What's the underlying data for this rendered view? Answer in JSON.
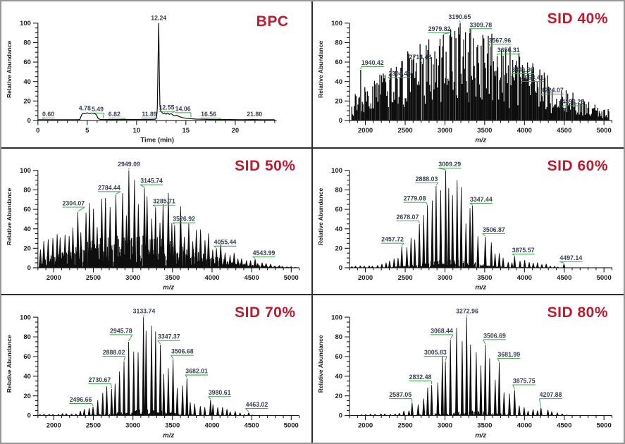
{
  "figure": {
    "background": "#ffffff",
    "outer_border_color": "#979797",
    "divider_color": "#2e2e2e",
    "accent_red": "#c11a2e",
    "trace_color": "#0e0e0e",
    "axis_color": "#1c1c1c",
    "peak_label_color": "#3b4154",
    "leader_green": "#3aa84b"
  },
  "chart_data": [
    {
      "id": "bpc",
      "type": "line",
      "subtype": "chromatogram",
      "title": "BPC",
      "xlabel": "Time (min)",
      "xlabel_italic": false,
      "ylabel": "Relative Abundance",
      "xlim": [
        0,
        24.2
      ],
      "ylim": [
        0,
        105
      ],
      "xmajor": 5,
      "xminor": 1,
      "ymajor": 20,
      "yminor": 5,
      "xtick_labels": [
        "0",
        "5",
        "10",
        "15",
        "20"
      ],
      "ytick_labels": [
        "0",
        "20",
        "40",
        "60",
        "80",
        "100"
      ],
      "trace": [
        [
          0,
          0.8
        ],
        [
          1,
          0.8
        ],
        [
          2,
          0.8
        ],
        [
          3,
          0.8
        ],
        [
          4,
          0.8
        ],
        [
          4.25,
          1.0
        ],
        [
          4.45,
          6.2
        ],
        [
          4.6,
          7.4
        ],
        [
          4.8,
          7.0
        ],
        [
          5.0,
          7.8
        ],
        [
          5.2,
          7.1
        ],
        [
          5.4,
          7.6
        ],
        [
          5.6,
          7.2
        ],
        [
          5.8,
          6.8
        ],
        [
          5.95,
          5.5
        ],
        [
          6.1,
          2.0
        ],
        [
          6.3,
          1.1
        ],
        [
          7,
          0.9
        ],
        [
          8,
          0.9
        ],
        [
          9,
          1.0
        ],
        [
          10,
          1.0
        ],
        [
          11,
          1.0
        ],
        [
          11.6,
          1.1
        ],
        [
          11.9,
          1.3
        ],
        [
          12.02,
          2.5
        ],
        [
          12.1,
          12
        ],
        [
          12.18,
          62
        ],
        [
          12.24,
          100
        ],
        [
          12.3,
          52
        ],
        [
          12.36,
          16
        ],
        [
          12.45,
          9
        ],
        [
          12.55,
          8.6
        ],
        [
          12.7,
          7.0
        ],
        [
          12.85,
          7.6
        ],
        [
          13.0,
          6.4
        ],
        [
          13.15,
          7.8
        ],
        [
          13.3,
          6.3
        ],
        [
          13.5,
          7.0
        ],
        [
          13.7,
          5.4
        ],
        [
          13.9,
          4.9
        ],
        [
          14.06,
          5.4
        ],
        [
          14.3,
          4.0
        ],
        [
          14.6,
          3.0
        ],
        [
          15.0,
          2.2
        ],
        [
          15.5,
          1.8
        ],
        [
          16.0,
          1.4
        ],
        [
          16.56,
          1.2
        ],
        [
          17.5,
          1.0
        ],
        [
          18.5,
          0.9
        ],
        [
          19.5,
          0.9
        ],
        [
          20.5,
          0.8
        ],
        [
          21.8,
          0.9
        ],
        [
          22.8,
          0.8
        ],
        [
          24.0,
          0.8
        ]
      ],
      "annotated_peaks": [
        {
          "label": "0.60",
          "lx": 1.05,
          "ly": 4.3,
          "tx": 0.6,
          "ty": 1.2
        },
        {
          "label": "4.78",
          "lx": 4.75,
          "ly": 10.6
        },
        {
          "label": "5.49",
          "lx": 6.05,
          "ly": 9.4,
          "tx": 6.6,
          "ty": 1.6
        },
        {
          "label": "6.82",
          "lx": 7.75,
          "ly": 4.1,
          "tx": 8.9,
          "ty": 1.1
        },
        {
          "label": "11.89",
          "lx": 11.3,
          "ly": 4.4,
          "tx": 12.0,
          "ty": 1.6
        },
        {
          "label": "12.24",
          "lx": 12.24,
          "ly": 103
        },
        {
          "label": "12.55",
          "lx": 13.05,
          "ly": 11.0,
          "tx": 13.6,
          "ty": 7.2
        },
        {
          "label": "14.06",
          "lx": 14.7,
          "ly": 9.8,
          "tx": 15.5,
          "ty": 2.6
        },
        {
          "label": "16.56",
          "lx": 17.3,
          "ly": 4.2,
          "tx": 18.6,
          "ty": 1.1
        },
        {
          "label": "21.80",
          "lx": 21.95,
          "ly": 4.2
        }
      ]
    },
    {
      "id": "sid40",
      "type": "line",
      "subtype": "mass-spectrum",
      "title": "SID 40%",
      "xlabel": "m/z",
      "xlabel_italic": true,
      "ylabel": "Relative Abundance",
      "xlim": [
        1800,
        5100
      ],
      "ylim": [
        0,
        105
      ],
      "xmajor": 500,
      "xminor": 100,
      "ymajor": 20,
      "yminor": 5,
      "xtick_labels": [
        "2000",
        "2500",
        "3000",
        "3500",
        "4000",
        "4500",
        "5000"
      ],
      "ytick_labels": [
        "0",
        "20",
        "40",
        "60",
        "80",
        "100"
      ],
      "envelope": [
        [
          98,
          3230,
          880
        ]
      ],
      "render": {
        "style": "dense",
        "seed": 13,
        "comb_spacing": 11,
        "comb_min": 0.16,
        "comb_var": 0.84,
        "comb_pow": 0.85,
        "grass_spacing": 0,
        "grass_amp": 0
      },
      "annotated_peaks": [
        {
          "label": "1940.42",
          "x": 1940.42,
          "y": 52,
          "lx": 2090,
          "ly": 57
        },
        {
          "label": "2304.46",
          "x": 2304.46,
          "y": 42,
          "lx": 2430,
          "ly": 46
        },
        {
          "label": "2714.43",
          "x": 2714.43,
          "y": 58,
          "lx": 2690,
          "ly": 63
        },
        {
          "label": "2979.82",
          "x": 2979.82,
          "y": 88,
          "lx": 2930,
          "ly": 92
        },
        {
          "label": "3190.65",
          "x": 3190.65,
          "y": 100,
          "lx": 3185,
          "ly": 104
        },
        {
          "label": "3309.78",
          "x": 3309.78,
          "y": 90,
          "lx": 3450,
          "ly": 96
        },
        {
          "label": "3567.96",
          "x": 3567.96,
          "y": 76,
          "lx": 3690,
          "ly": 80
        },
        {
          "label": "3656.31",
          "x": 3656.31,
          "y": 66,
          "lx": 3800,
          "ly": 70
        },
        {
          "label": "3841.98",
          "x": 3841.98,
          "y": 46,
          "lx": 3980,
          "ly": 50
        },
        {
          "label": "3968.41",
          "x": 3968.41,
          "y": 38,
          "lx": 4100,
          "ly": 42
        },
        {
          "label": "4224.07",
          "x": 4224.07,
          "y": 25,
          "lx": 4350,
          "ly": 29
        },
        {
          "label": "4492.29",
          "x": 4492.29,
          "y": 13,
          "lx": 4610,
          "ly": 17
        }
      ]
    },
    {
      "id": "sid50",
      "type": "line",
      "subtype": "mass-spectrum",
      "title": "SID 50%",
      "xlabel": "m/z",
      "xlabel_italic": true,
      "ylabel": "Relative Abundance",
      "xlim": [
        1800,
        5100
      ],
      "ylim": [
        0,
        105
      ],
      "xmajor": 500,
      "xminor": 100,
      "ymajor": 20,
      "yminor": 5,
      "xtick_labels": [
        "2000",
        "2500",
        "3000",
        "3500",
        "4000",
        "4500",
        "5000"
      ],
      "ytick_labels": [
        "0",
        "20",
        "40",
        "60",
        "80",
        "100"
      ],
      "envelope": [
        [
          96,
          2980,
          700
        ]
      ],
      "render": {
        "style": "resolved",
        "seed": 23,
        "comb_spacing": 52,
        "comb_min": 0.52,
        "comb_var": 0.48,
        "comb_pow": 1.0,
        "grass_spacing": 7,
        "grass_amp": 0.38,
        "halfwidth": 2.4
      },
      "annotated_peaks": [
        {
          "label": "2304.07",
          "x": 2304.07,
          "y": 57,
          "lx": 2250,
          "ly": 64
        },
        {
          "label": "2784.44",
          "x": 2784.44,
          "y": 75,
          "lx": 2700,
          "ly": 80
        },
        {
          "label": "2949.09",
          "x": 2949.09,
          "y": 100,
          "lx": 2950,
          "ly": 104
        },
        {
          "label": "3145.74",
          "x": 3145.74,
          "y": 82,
          "lx": 3235,
          "ly": 87
        },
        {
          "label": "3285.71",
          "x": 3285.71,
          "y": 62,
          "lx": 3395,
          "ly": 66
        },
        {
          "label": "3526.92",
          "x": 3526.92,
          "y": 44,
          "lx": 3645,
          "ly": 48
        },
        {
          "label": "4055.44",
          "x": 4055.44,
          "y": 20,
          "lx": 4165,
          "ly": 24
        },
        {
          "label": "4543.99",
          "x": 4543.99,
          "y": 9,
          "lx": 4655,
          "ly": 13
        }
      ]
    },
    {
      "id": "sid60",
      "type": "line",
      "subtype": "mass-spectrum",
      "title": "SID 60%",
      "xlabel": "m/z",
      "xlabel_italic": true,
      "ylabel": "Relative Abundance",
      "xlim": [
        1800,
        5100
      ],
      "ylim": [
        0,
        105
      ],
      "xmajor": 500,
      "xminor": 100,
      "ymajor": 20,
      "yminor": 5,
      "xtick_labels": [
        "2000",
        "2500",
        "3000",
        "3500",
        "4000",
        "4500",
        "5000"
      ],
      "ytick_labels": [
        "0",
        "20",
        "40",
        "60",
        "80",
        "100"
      ],
      "envelope": [
        [
          97,
          3060,
          340
        ],
        [
          10,
          3920,
          260
        ],
        [
          3,
          2100,
          250
        ]
      ],
      "render": {
        "style": "resolved",
        "seed": 33,
        "comb_spacing": 53,
        "comb_min": 0.55,
        "comb_var": 0.45,
        "comb_pow": 1.0,
        "grass_spacing": 9,
        "grass_amp": 0.09,
        "halfwidth": 2.0
      },
      "annotated_peaks": [
        {
          "label": "2457.72",
          "x": 2457.72,
          "y": 22,
          "lx": 2340,
          "ly": 27
        },
        {
          "label": "2678.07",
          "x": 2678.07,
          "y": 45,
          "lx": 2530,
          "ly": 50
        },
        {
          "label": "2779.08",
          "x": 2779.08,
          "y": 64,
          "lx": 2620,
          "ly": 69
        },
        {
          "label": "2888.03",
          "x": 2888.03,
          "y": 84,
          "lx": 2770,
          "ly": 89
        },
        {
          "label": "3009.29",
          "x": 3009.29,
          "y": 100,
          "lx": 3060,
          "ly": 104
        },
        {
          "label": "3347.44",
          "x": 3347.44,
          "y": 64,
          "lx": 3455,
          "ly": 68
        },
        {
          "label": "3506.87",
          "x": 3506.87,
          "y": 32,
          "lx": 3615,
          "ly": 37
        },
        {
          "label": "3875.57",
          "x": 3875.57,
          "y": 12,
          "lx": 3985,
          "ly": 16
        },
        {
          "label": "4497.14",
          "x": 4497.14,
          "y": 4,
          "lx": 4585,
          "ly": 8
        }
      ]
    },
    {
      "id": "sid70",
      "type": "line",
      "subtype": "mass-spectrum",
      "title": "SID 70%",
      "xlabel": "m/z",
      "xlabel_italic": true,
      "ylabel": "Relative Abundance",
      "xlim": [
        1800,
        5100
      ],
      "ylim": [
        0,
        105
      ],
      "xmajor": 500,
      "xminor": 100,
      "ymajor": 20,
      "yminor": 5,
      "xtick_labels": [
        "2000",
        "2500",
        "3000",
        "3500",
        "4000",
        "4500",
        "5000"
      ],
      "ytick_labels": [
        "0",
        "20",
        "40",
        "60",
        "80",
        "100"
      ],
      "envelope": [
        [
          99,
          3150,
          330
        ],
        [
          14,
          3960,
          230
        ],
        [
          2.5,
          2150,
          280
        ]
      ],
      "render": {
        "style": "resolved",
        "seed": 43,
        "comb_spacing": 56,
        "comb_min": 0.55,
        "comb_var": 0.45,
        "comb_pow": 1.0,
        "grass_spacing": 10,
        "grass_amp": 0.06,
        "halfwidth": 2.0
      },
      "annotated_peaks": [
        {
          "label": "2496.66",
          "x": 2496.66,
          "y": 9,
          "lx": 2340,
          "ly": 14
        },
        {
          "label": "2730.67",
          "x": 2730.67,
          "y": 27,
          "lx": 2580,
          "ly": 34
        },
        {
          "label": "2888.02",
          "x": 2888.02,
          "y": 55,
          "lx": 2760,
          "ly": 62
        },
        {
          "label": "2945.78",
          "x": 2945.78,
          "y": 75,
          "lx": 2850,
          "ly": 84
        },
        {
          "label": "3133.74",
          "x": 3133.74,
          "y": 100,
          "lx": 3140,
          "ly": 104
        },
        {
          "label": "3347.37",
          "x": 3347.37,
          "y": 72,
          "lx": 3455,
          "ly": 78
        },
        {
          "label": "3506.68",
          "x": 3506.68,
          "y": 57,
          "lx": 3625,
          "ly": 63
        },
        {
          "label": "3682.01",
          "x": 3682.01,
          "y": 38,
          "lx": 3805,
          "ly": 43
        },
        {
          "label": "3980.61",
          "x": 3980.61,
          "y": 16,
          "lx": 4095,
          "ly": 21
        },
        {
          "label": "4463.02",
          "x": 4463.02,
          "y": 3,
          "lx": 4565,
          "ly": 9
        }
      ]
    },
    {
      "id": "sid80",
      "type": "line",
      "subtype": "mass-spectrum",
      "title": "SID 80%",
      "xlabel": "m/z",
      "xlabel_italic": true,
      "ylabel": "Relative Abundance",
      "xlim": [
        1800,
        5100
      ],
      "ylim": [
        0,
        105
      ],
      "xmajor": 500,
      "xminor": 100,
      "ymajor": 20,
      "yminor": 5,
      "xtick_labels": [
        "2000",
        "2500",
        "3000",
        "3500",
        "4000",
        "4500",
        "5000"
      ],
      "ytick_labels": [
        "0",
        "20",
        "40",
        "60",
        "80",
        "100"
      ],
      "envelope": [
        [
          99,
          3290,
          330
        ],
        [
          9,
          4150,
          200
        ],
        [
          2,
          2200,
          250
        ]
      ],
      "render": {
        "style": "resolved",
        "seed": 53,
        "comb_spacing": 60,
        "comb_min": 0.55,
        "comb_var": 0.45,
        "comb_pow": 1.0,
        "grass_spacing": 10,
        "grass_amp": 0.05,
        "halfwidth": 2.0
      },
      "annotated_peaks": [
        {
          "label": "2587.05",
          "x": 2587.05,
          "y": 13,
          "lx": 2440,
          "ly": 19
        },
        {
          "label": "2832.48",
          "x": 2832.48,
          "y": 31,
          "lx": 2690,
          "ly": 37
        },
        {
          "label": "3005.83",
          "x": 3005.83,
          "y": 55,
          "lx": 2880,
          "ly": 62
        },
        {
          "label": "3068.44",
          "x": 3068.44,
          "y": 77,
          "lx": 2960,
          "ly": 84
        },
        {
          "label": "3272.96",
          "x": 3272.96,
          "y": 100,
          "lx": 3280,
          "ly": 104
        },
        {
          "label": "3506.69",
          "x": 3506.69,
          "y": 72,
          "lx": 3625,
          "ly": 79
        },
        {
          "label": "3681.99",
          "x": 3681.99,
          "y": 54,
          "lx": 3805,
          "ly": 60
        },
        {
          "label": "3875.75",
          "x": 3875.75,
          "y": 26,
          "lx": 3995,
          "ly": 33
        },
        {
          "label": "4207.88",
          "x": 4207.88,
          "y": 8,
          "lx": 4330,
          "ly": 19
        }
      ]
    }
  ]
}
